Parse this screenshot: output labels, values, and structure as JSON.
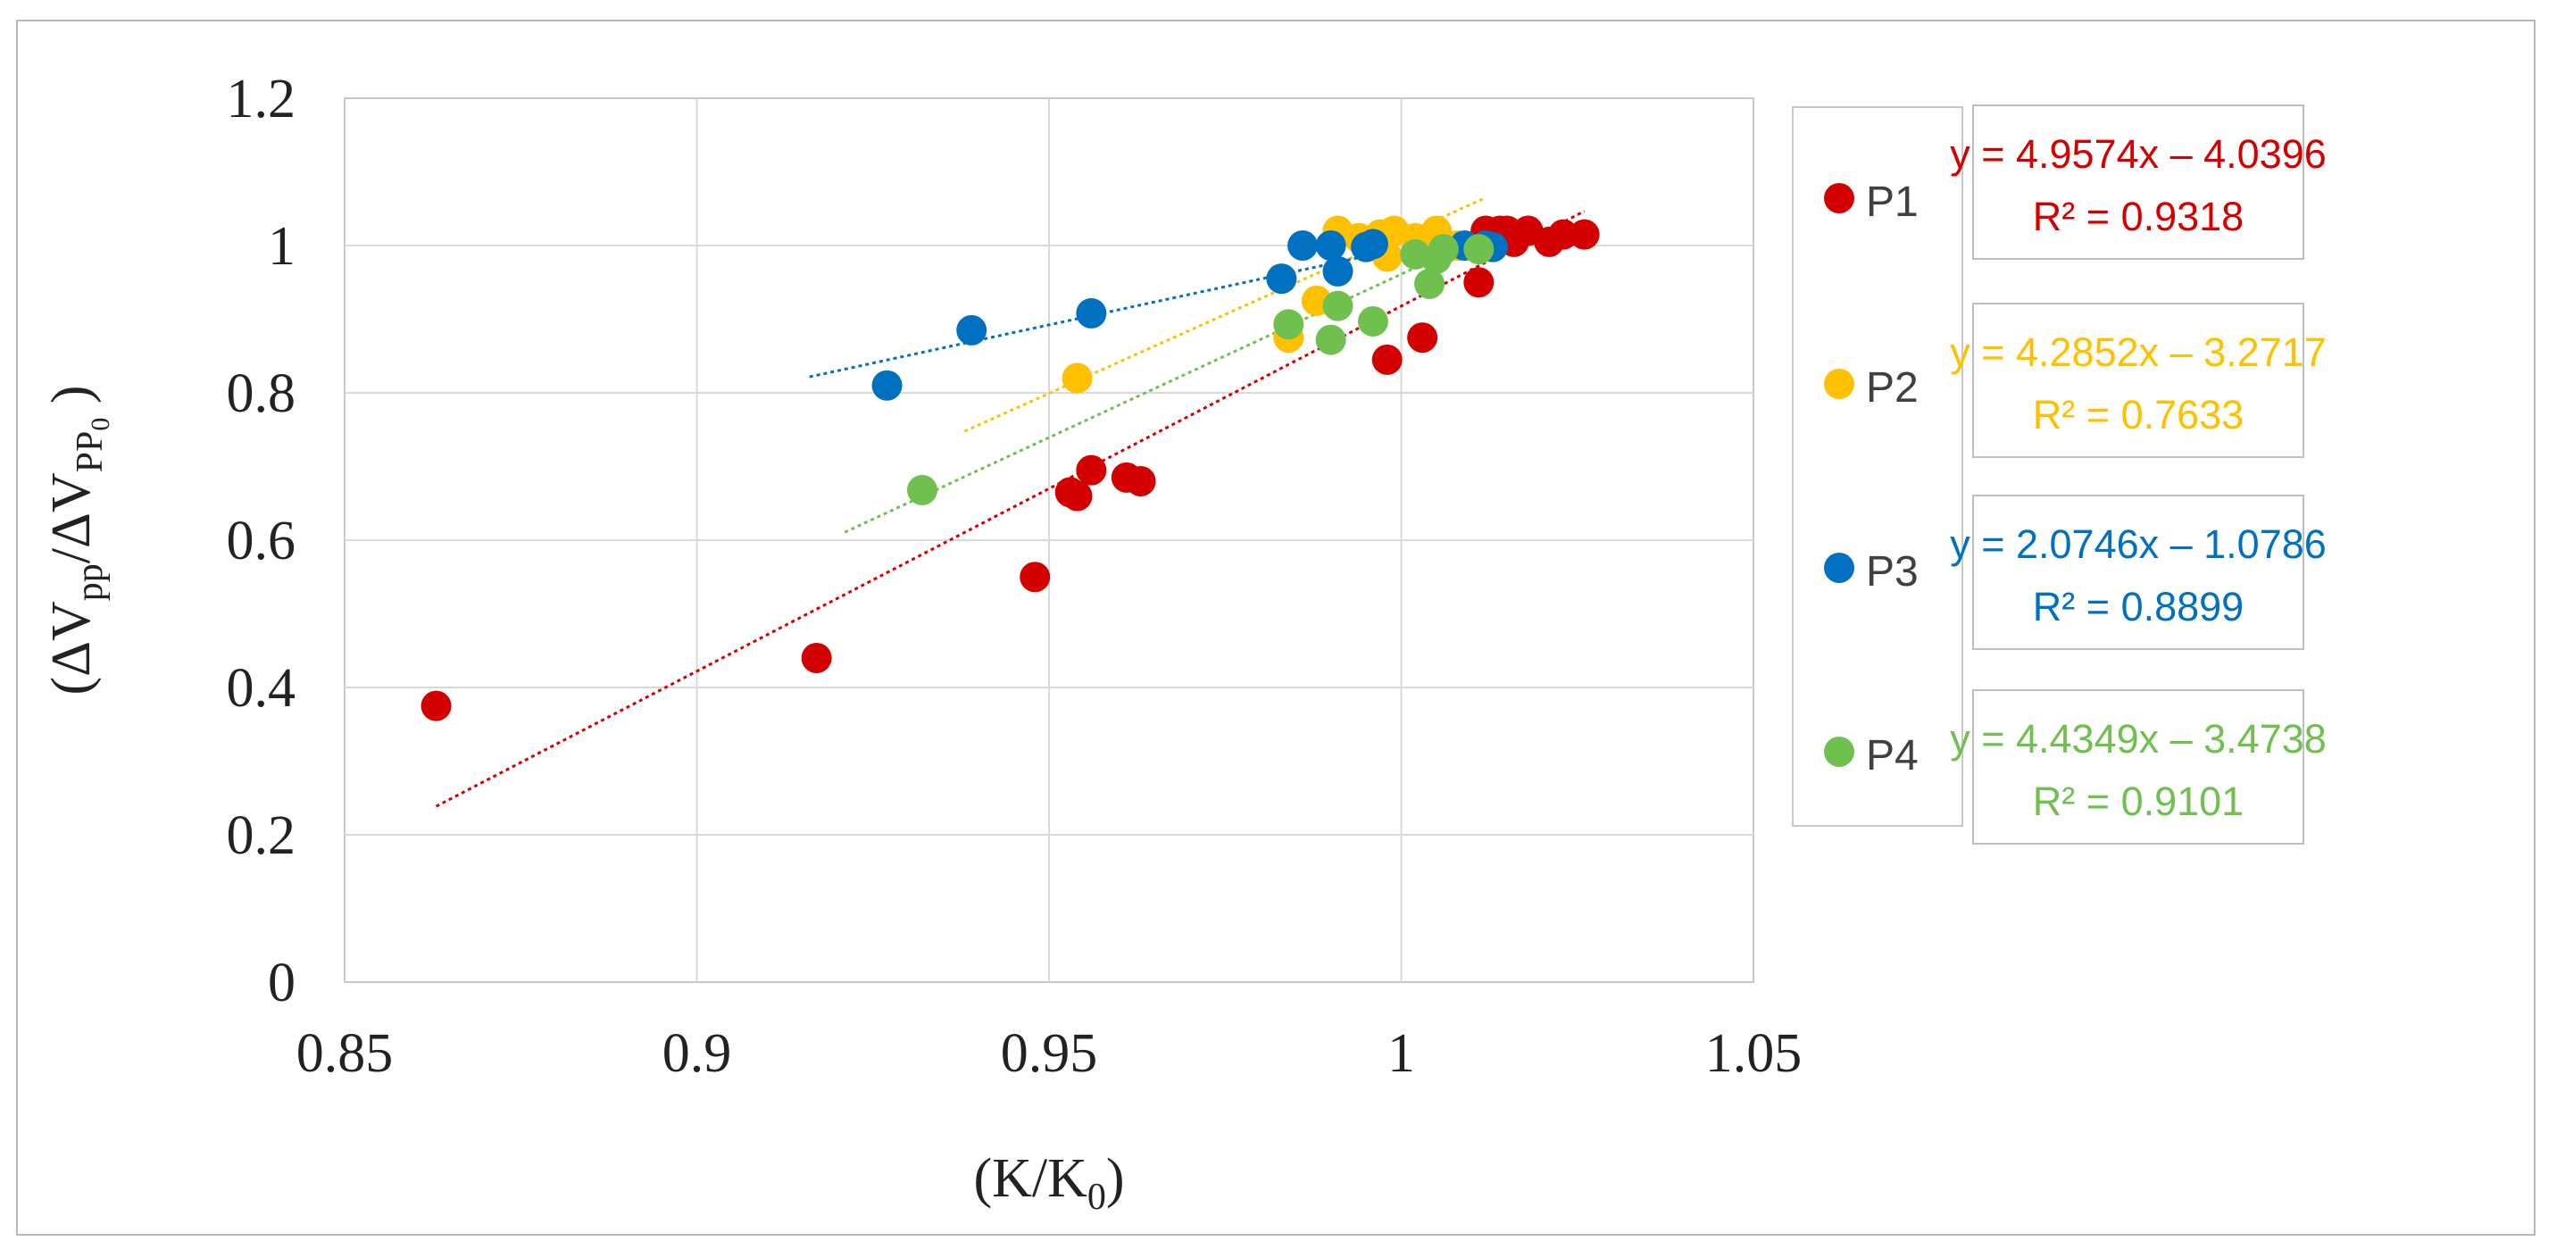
{
  "chart_data": {
    "type": "scatter",
    "xlabel_main": "(K/K",
    "xlabel_sub": "0",
    "xlabel_end": ")",
    "ylabel_parts": [
      "(ΔV",
      "pp",
      "/ΔV",
      "PP",
      "0",
      " )"
    ],
    "xlim": [
      0.85,
      1.05
    ],
    "ylim": [
      0,
      1.2
    ],
    "x_ticks": [
      0.85,
      0.9,
      0.95,
      1,
      1.05
    ],
    "x_tick_labels": [
      "0.85",
      "0.9",
      "0.95",
      "1",
      "1.05"
    ],
    "y_ticks": [
      0,
      0.2,
      0.4,
      0.6,
      0.8,
      1,
      1.2
    ],
    "y_tick_labels": [
      "0",
      "0.2",
      "0.4",
      "0.6",
      "0.8",
      "1",
      "1.2"
    ],
    "grid": true,
    "legend_position": "right",
    "series": [
      {
        "name": "P1",
        "color": "#d40000",
        "equation": "y = 4.9574x – 4.0396",
        "r2": "R² = 0.9318",
        "trend_range": [
          0.863,
          1.026
        ],
        "points": [
          [
            0.863,
            0.375
          ],
          [
            0.917,
            0.44
          ],
          [
            0.948,
            0.55
          ],
          [
            0.953,
            0.665
          ],
          [
            0.954,
            0.66
          ],
          [
            0.956,
            0.695
          ],
          [
            0.961,
            0.685
          ],
          [
            0.963,
            0.68
          ],
          [
            0.998,
            0.845
          ],
          [
            1.003,
            0.875
          ],
          [
            1.011,
            0.95
          ],
          [
            1.012,
            1.02
          ],
          [
            1.014,
            1.02
          ],
          [
            1.015,
            1.02
          ],
          [
            1.016,
            1.005
          ],
          [
            1.018,
            1.02
          ],
          [
            1.021,
            1.005
          ],
          [
            1.023,
            1.015
          ],
          [
            1.026,
            1.015
          ]
        ]
      },
      {
        "name": "P2",
        "color": "#ffc000",
        "equation": "y = 4.2852x – 3.2717",
        "r2": "R² = 0.7633",
        "trend_range": [
          0.938,
          1.012
        ],
        "points": [
          [
            0.954,
            0.82
          ],
          [
            0.984,
            0.875
          ],
          [
            0.988,
            0.925
          ],
          [
            0.991,
            1.02
          ],
          [
            0.994,
            1.01
          ],
          [
            0.997,
            1.015
          ],
          [
            0.998,
            0.985
          ],
          [
            0.999,
            1.02
          ],
          [
            1.002,
            1.01
          ],
          [
            1.005,
            1.02
          ],
          [
            1.008,
            1.0
          ]
        ]
      },
      {
        "name": "P3",
        "color": "#0070c0",
        "equation": "y = 2.0746x – 1.0786",
        "r2": "R² = 0.8899",
        "trend_range": [
          0.916,
          1.014
        ],
        "points": [
          [
            0.927,
            0.81
          ],
          [
            0.939,
            0.885
          ],
          [
            0.956,
            0.908
          ],
          [
            0.983,
            0.955
          ],
          [
            0.986,
            1.0
          ],
          [
            0.99,
            1.0
          ],
          [
            0.991,
            0.965
          ],
          [
            0.995,
            0.998
          ],
          [
            0.996,
            1.002
          ],
          [
            1.009,
            1.0
          ],
          [
            1.012,
            1.0
          ],
          [
            1.013,
            0.998
          ]
        ]
      },
      {
        "name": "P4",
        "color": "#70c050",
        "equation": "y = 4.4349x – 3.4738",
        "r2": "R² = 0.9101",
        "trend_range": [
          0.921,
          1.011
        ],
        "points": [
          [
            0.932,
            0.668
          ],
          [
            0.984,
            0.893
          ],
          [
            0.99,
            0.872
          ],
          [
            0.991,
            0.918
          ],
          [
            0.996,
            0.897
          ],
          [
            1.002,
            0.988
          ],
          [
            1.004,
            0.948
          ],
          [
            1.005,
            0.982
          ],
          [
            1.006,
            0.995
          ],
          [
            1.011,
            0.995
          ]
        ]
      }
    ]
  }
}
